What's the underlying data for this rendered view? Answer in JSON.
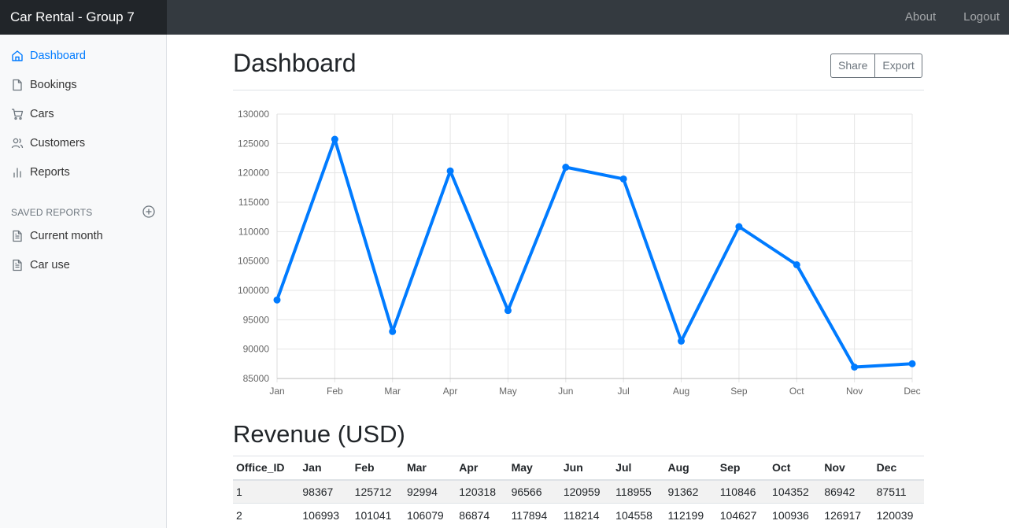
{
  "brand": "Car Rental - Group 7",
  "topnav": {
    "about": "About",
    "logout": "Logout"
  },
  "sidebar": {
    "items": [
      {
        "label": "Dashboard",
        "icon": "home-icon"
      },
      {
        "label": "Bookings",
        "icon": "file-icon"
      },
      {
        "label": "Cars",
        "icon": "cart-icon"
      },
      {
        "label": "Customers",
        "icon": "users-icon"
      },
      {
        "label": "Reports",
        "icon": "bar-chart-icon"
      }
    ],
    "saved_heading": "SAVED REPORTS",
    "saved_items": [
      {
        "label": "Current month",
        "icon": "file-text-icon"
      },
      {
        "label": "Car use",
        "icon": "file-text-icon"
      }
    ]
  },
  "main": {
    "title": "Dashboard",
    "share_label": "Share",
    "export_label": "Export",
    "section_title": "Revenue (USD)"
  },
  "colors": {
    "accent": "#007bff",
    "topbar": "#343a40",
    "brand_bg": "#212529"
  },
  "chart_data": {
    "type": "line",
    "categories": [
      "Jan",
      "Feb",
      "Mar",
      "Apr",
      "May",
      "Jun",
      "Jul",
      "Aug",
      "Sep",
      "Oct",
      "Nov",
      "Dec"
    ],
    "values": [
      98367,
      125712,
      92994,
      120318,
      96566,
      120959,
      118955,
      91362,
      110846,
      104352,
      86942,
      87511
    ],
    "ylim": [
      85000,
      130000
    ],
    "yticks": [
      130000,
      125000,
      120000,
      115000,
      110000,
      105000,
      100000,
      95000,
      90000,
      85000
    ],
    "grid": true,
    "color": "#007bff"
  },
  "table": {
    "headers": [
      "Office_ID",
      "Jan",
      "Feb",
      "Mar",
      "Apr",
      "May",
      "Jun",
      "Jul",
      "Aug",
      "Sep",
      "Oct",
      "Nov",
      "Dec"
    ],
    "rows": [
      [
        "1",
        "98367",
        "125712",
        "92994",
        "120318",
        "96566",
        "120959",
        "118955",
        "91362",
        "110846",
        "104352",
        "86942",
        "87511"
      ],
      [
        "2",
        "106993",
        "101041",
        "106079",
        "86874",
        "117894",
        "118214",
        "104558",
        "112199",
        "104627",
        "100936",
        "126917",
        "120039"
      ]
    ]
  }
}
